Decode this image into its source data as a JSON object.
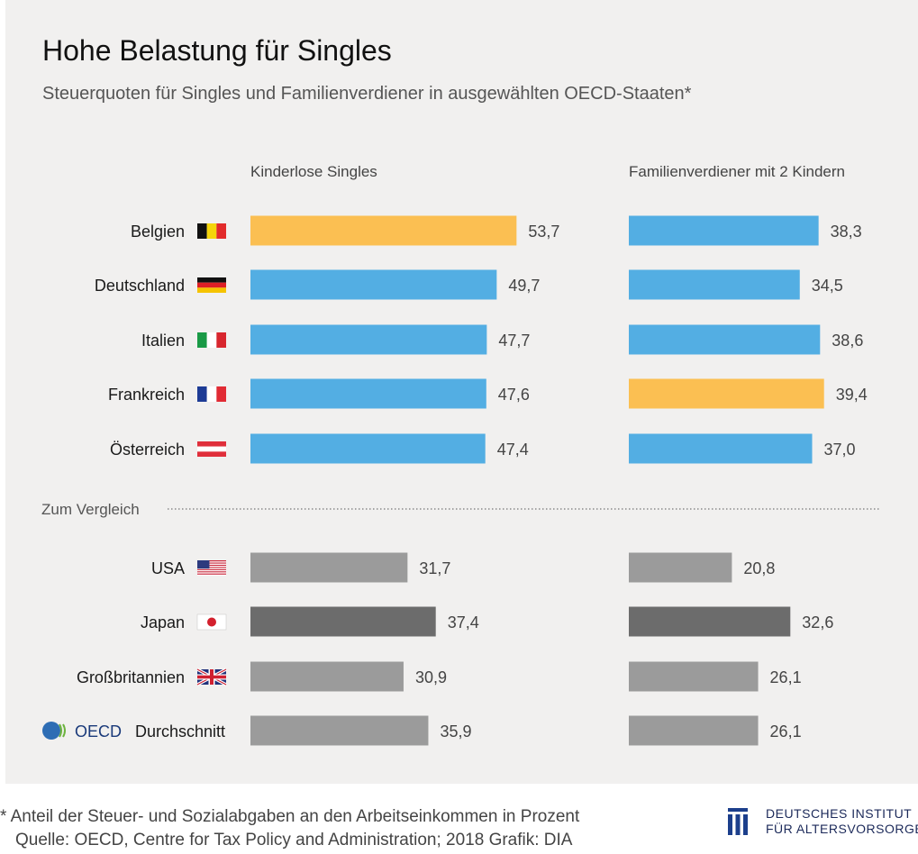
{
  "chart_data": {
    "type": "bar",
    "title": "Hohe Belastung für Singles",
    "subtitle": "Steuerquoten für Singles und Familienverdiener in ausgewählten OECD-Staaten*",
    "comparison_label": "Zum Vergleich",
    "categories": [
      "Belgien",
      "Deutschland",
      "Italien",
      "Frankreich",
      "Österreich",
      "USA",
      "Japan",
      "Großbritannien",
      "OECD Durchschnitt"
    ],
    "series": [
      {
        "name": "Kinderlose Singles",
        "values": [
          53.7,
          49.7,
          47.7,
          47.6,
          47.4,
          31.7,
          37.4,
          30.9,
          35.9
        ],
        "labels": [
          "53,7",
          "49,7",
          "47,7",
          "47,6",
          "47,4",
          "31,7",
          "37,4",
          "30,9",
          "35,9"
        ]
      },
      {
        "name": "Familienverdiener mit 2 Kindern",
        "values": [
          38.3,
          34.5,
          38.6,
          39.4,
          37.0,
          20.8,
          32.6,
          26.1,
          26.1
        ],
        "labels": [
          "38,3",
          "34,5",
          "38,6",
          "39,4",
          "37,0",
          "20,8",
          "32,6",
          "26,1",
          "26,1"
        ]
      }
    ],
    "highlight": [
      [
        0
      ],
      [
        3
      ]
    ],
    "colors": {
      "default": "#53aee3",
      "highlight": "#fbbf52",
      "comparison": "#9b9b9b",
      "comparison_dark": "#6c6c6c"
    },
    "flags": [
      "belgium-flag-icon",
      "germany-flag-icon",
      "italy-flag-icon",
      "france-flag-icon",
      "austria-flag-icon",
      "usa-flag-icon",
      "japan-flag-icon",
      "uk-flag-icon",
      "oecd-logo-icon"
    ],
    "oecd_logo_text": "OECD"
  },
  "footer": {
    "note": "* Anteil der Steuer- und Sozialabgaben an den Arbeitseinkommen in Prozent",
    "source": "Quelle: OECD, Centre for Tax Policy and Administration; 2018  Grafik: DIA"
  },
  "brand": {
    "line1": "DEUTSCHES INSTITUT",
    "line2": "FÜR ALTERSVORSORGE",
    "color": "#1c3f8c"
  }
}
